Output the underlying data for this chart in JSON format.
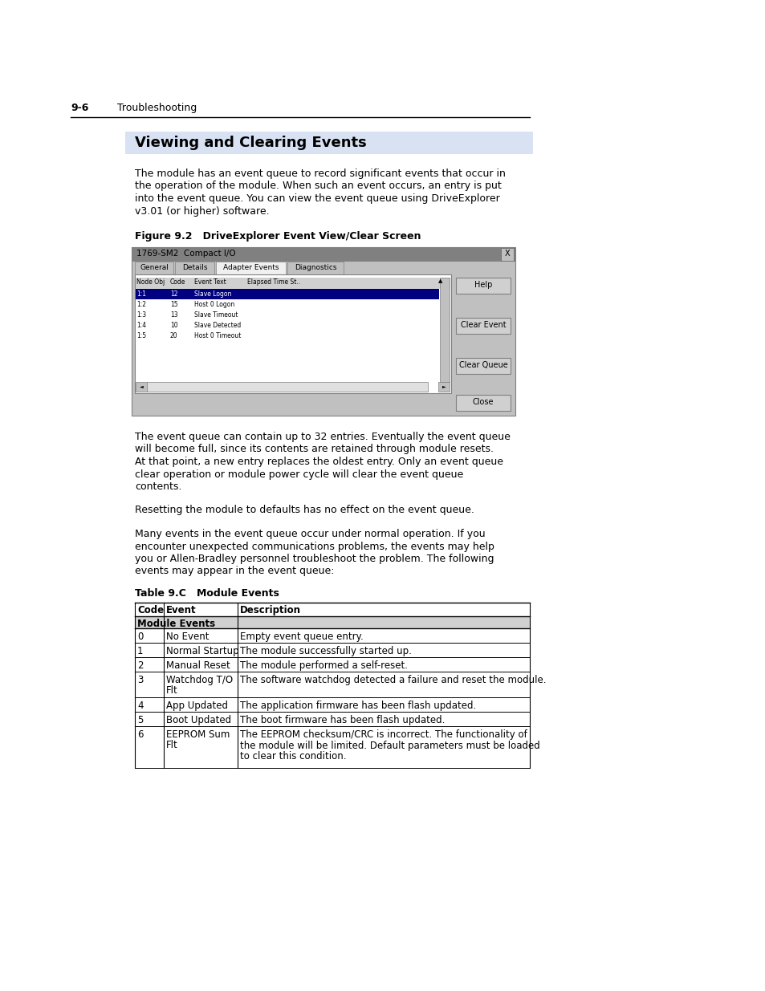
{
  "bg_color": "#ffffff",
  "header_section_num": "9-6",
  "header_section_title": "Troubleshooting",
  "section_title": "Viewing and Clearing Events",
  "section_title_bg": "#dce6f1",
  "para1_lines": [
    "The module has an event queue to record significant events that occur in",
    "the operation of the module. When such an event occurs, an entry is put",
    "into the event queue. You can view the event queue using DriveExplorer",
    "v3.01 (or higher) software."
  ],
  "figure_caption": "Figure 9.2   DriveExplorer Event View/Clear Screen",
  "dialog_title": "1769-SM2  Compact I/O",
  "dialog_tabs": [
    "General",
    "Details",
    "Adapter Events",
    "Diagnostics"
  ],
  "dialog_active_tab": "Adapter Events",
  "dialog_col_headers": [
    "Node Obj",
    "Code",
    "Event Text",
    "Elapsed Time St.."
  ],
  "dialog_rows": [
    [
      "1:1",
      "12",
      "Slave Logon",
      true
    ],
    [
      "1:2",
      "15",
      "Host 0 Logon",
      false
    ],
    [
      "1:3",
      "13",
      "Slave Timeout",
      false
    ],
    [
      "1:4",
      "10",
      "Slave Detected",
      false
    ],
    [
      "1:5",
      "20",
      "Host 0 Timeout",
      false
    ]
  ],
  "dialog_buttons": [
    "Help",
    "Clear Event",
    "Clear Queue"
  ],
  "dialog_close_btn": "Close",
  "para2_lines": [
    "The event queue can contain up to 32 entries. Eventually the event queue",
    "will become full, since its contents are retained through module resets.",
    "At that point, a new entry replaces the oldest entry. Only an event queue",
    "clear operation or module power cycle will clear the event queue",
    "contents."
  ],
  "para3": "Resetting the module to defaults has no effect on the event queue.",
  "para4_lines": [
    "Many events in the event queue occur under normal operation. If you",
    "encounter unexpected communications problems, the events may help",
    "you or Allen-Bradley personnel troubleshoot the problem. The following",
    "events may appear in the event queue:"
  ],
  "table_title": "Table 9.C   Module Events",
  "table_headers": [
    "Code",
    "Event",
    "Description"
  ],
  "table_section_header": "Module Events",
  "table_rows": [
    [
      "0",
      "No Event",
      "Empty event queue entry."
    ],
    [
      "1",
      "Normal Startup",
      "The module successfully started up."
    ],
    [
      "2",
      "Manual Reset",
      "The module performed a self-reset."
    ],
    [
      "3",
      "Watchdog T/O\nFlt",
      "The software watchdog detected a failure and reset the module."
    ],
    [
      "4",
      "App Updated",
      "The application firmware has been flash updated."
    ],
    [
      "5",
      "Boot Updated",
      "The boot firmware has been flash updated."
    ],
    [
      "6",
      "EEPROM Sum\nFlt",
      "The EEPROM checksum/CRC is incorrect. The functionality of\nthe module will be limited. Default parameters must be loaded\nto clear this condition."
    ]
  ],
  "table_row_heights": [
    18,
    18,
    18,
    32,
    18,
    18,
    52
  ]
}
